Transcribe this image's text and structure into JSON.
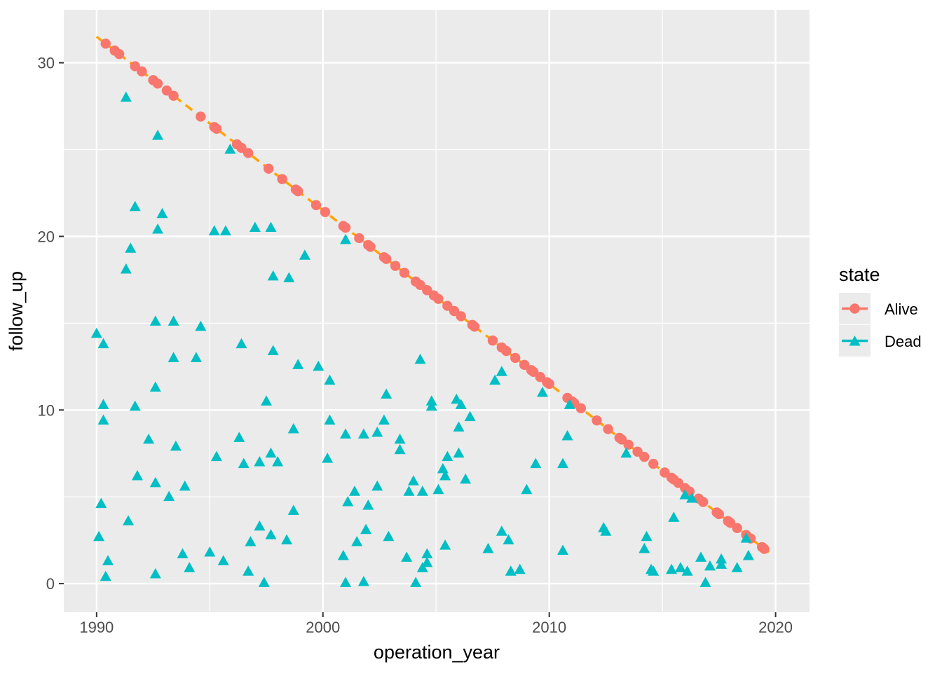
{
  "figure": {
    "background": "#FFFFFF",
    "panel_background": "#EBEBEB",
    "grid_color": "#FFFFFF",
    "tick_mark_color": "#333333",
    "tick_label_color": "#4D4D4D"
  },
  "legend": {
    "title": "state",
    "key_fill": "#EBEBEB",
    "entries": [
      {
        "label": "Alive",
        "color": "#F8766D",
        "marker": "circle"
      },
      {
        "label": "Dead",
        "color": "#00BFC4",
        "marker": "triangle"
      }
    ]
  },
  "chart_data": {
    "type": "scatter",
    "title": "",
    "xlabel": "operation_year",
    "ylabel": "follow_up",
    "x_ticks": [
      1990,
      2000,
      2010,
      2020
    ],
    "x_minor_ticks": [
      1995,
      2005,
      2015
    ],
    "y_ticks": [
      0,
      10,
      20,
      30
    ],
    "y_minor_ticks": [
      5,
      15,
      25
    ],
    "xlim": [
      1988.55,
      2021.5
    ],
    "ylim": [
      -1.65,
      33.05
    ],
    "grid": true,
    "legend_position": "right",
    "trend_line": {
      "color": "#FFA500",
      "style": "dashed",
      "x1": 1990.0,
      "y1": 31.5,
      "x2": 2019.7,
      "y2": 1.8
    },
    "series": [
      {
        "name": "Alive",
        "marker": "circle",
        "color": "#F8766D",
        "points": [
          [
            1990.4,
            31.1
          ],
          [
            1990.8,
            30.7
          ],
          [
            1991.0,
            30.5
          ],
          [
            1991.7,
            29.8
          ],
          [
            1992.0,
            29.5
          ],
          [
            1992.5,
            29.0
          ],
          [
            1992.7,
            28.8
          ],
          [
            1993.1,
            28.4
          ],
          [
            1993.4,
            28.1
          ],
          [
            1994.6,
            26.9
          ],
          [
            1995.2,
            26.3
          ],
          [
            1995.3,
            26.2
          ],
          [
            1996.2,
            25.3
          ],
          [
            1996.4,
            25.1
          ],
          [
            1996.7,
            24.8
          ],
          [
            1997.6,
            23.9
          ],
          [
            1998.2,
            23.3
          ],
          [
            1998.8,
            22.7
          ],
          [
            1998.9,
            22.6
          ],
          [
            1999.7,
            21.8
          ],
          [
            2000.1,
            21.4
          ],
          [
            2000.9,
            20.6
          ],
          [
            2001.0,
            20.5
          ],
          [
            2001.6,
            19.9
          ],
          [
            2002.0,
            19.5
          ],
          [
            2002.1,
            19.4
          ],
          [
            2002.7,
            18.8
          ],
          [
            2002.8,
            18.7
          ],
          [
            2003.2,
            18.3
          ],
          [
            2003.6,
            17.9
          ],
          [
            2004.1,
            17.4
          ],
          [
            2004.3,
            17.2
          ],
          [
            2004.6,
            16.9
          ],
          [
            2004.9,
            16.6
          ],
          [
            2005.1,
            16.4
          ],
          [
            2005.5,
            16.0
          ],
          [
            2005.8,
            15.7
          ],
          [
            2006.1,
            15.4
          ],
          [
            2006.6,
            14.9
          ],
          [
            2006.7,
            14.8
          ],
          [
            2007.5,
            14.0
          ],
          [
            2007.9,
            13.6
          ],
          [
            2008.1,
            13.4
          ],
          [
            2008.5,
            13.0
          ],
          [
            2008.9,
            12.6
          ],
          [
            2009.2,
            12.3
          ],
          [
            2009.3,
            12.2
          ],
          [
            2009.6,
            11.9
          ],
          [
            2009.9,
            11.6
          ],
          [
            2010.0,
            11.5
          ],
          [
            2010.8,
            10.7
          ],
          [
            2011.0,
            10.5
          ],
          [
            2011.1,
            10.4
          ],
          [
            2011.4,
            10.1
          ],
          [
            2012.1,
            9.4
          ],
          [
            2012.6,
            8.9
          ],
          [
            2013.1,
            8.4
          ],
          [
            2013.2,
            8.3
          ],
          [
            2013.5,
            8.0
          ],
          [
            2013.9,
            7.6
          ],
          [
            2014.2,
            7.3
          ],
          [
            2014.6,
            6.9
          ],
          [
            2015.1,
            6.4
          ],
          [
            2015.4,
            6.1
          ],
          [
            2015.5,
            6.0
          ],
          [
            2015.7,
            5.8
          ],
          [
            2016.0,
            5.5
          ],
          [
            2016.2,
            5.3
          ],
          [
            2016.6,
            4.9
          ],
          [
            2016.8,
            4.7
          ],
          [
            2017.4,
            4.1
          ],
          [
            2017.5,
            4.0
          ],
          [
            2017.9,
            3.6
          ],
          [
            2018.0,
            3.5
          ],
          [
            2018.3,
            3.2
          ],
          [
            2018.7,
            2.8
          ],
          [
            2018.9,
            2.6
          ],
          [
            2019.4,
            2.1
          ],
          [
            2019.5,
            2.0
          ]
        ]
      },
      {
        "name": "Dead",
        "marker": "triangle",
        "color": "#00BFC4",
        "points": [
          [
            1991.3,
            28.0
          ],
          [
            1992.7,
            25.8
          ],
          [
            1995.9,
            25.0
          ],
          [
            1991.7,
            21.7
          ],
          [
            1992.9,
            21.3
          ],
          [
            1992.7,
            20.4
          ],
          [
            1995.2,
            20.3
          ],
          [
            1995.7,
            20.3
          ],
          [
            1997.0,
            20.5
          ],
          [
            1997.7,
            20.5
          ],
          [
            2001.0,
            19.8
          ],
          [
            1991.5,
            19.3
          ],
          [
            1999.2,
            18.9
          ],
          [
            1991.3,
            18.1
          ],
          [
            1997.8,
            17.7
          ],
          [
            1998.5,
            17.6
          ],
          [
            1992.6,
            15.1
          ],
          [
            1993.4,
            15.1
          ],
          [
            1994.6,
            14.8
          ],
          [
            1990.0,
            14.4
          ],
          [
            1990.3,
            13.8
          ],
          [
            1996.4,
            13.8
          ],
          [
            1993.4,
            13.0
          ],
          [
            1994.4,
            13.0
          ],
          [
            1997.8,
            13.4
          ],
          [
            1998.9,
            12.6
          ],
          [
            1999.8,
            12.5
          ],
          [
            2004.3,
            12.9
          ],
          [
            2007.9,
            12.2
          ],
          [
            2007.6,
            11.7
          ],
          [
            2000.3,
            11.7
          ],
          [
            1992.6,
            11.3
          ],
          [
            2002.8,
            10.9
          ],
          [
            2009.7,
            11.0
          ],
          [
            2010.9,
            10.3
          ],
          [
            2004.8,
            10.5
          ],
          [
            2004.8,
            10.2
          ],
          [
            2005.9,
            10.6
          ],
          [
            2006.1,
            10.3
          ],
          [
            1997.5,
            10.5
          ],
          [
            1990.3,
            10.3
          ],
          [
            1991.7,
            10.2
          ],
          [
            1990.3,
            9.4
          ],
          [
            2000.3,
            9.4
          ],
          [
            2002.7,
            9.4
          ],
          [
            2006.5,
            9.6
          ],
          [
            2006.0,
            9.0
          ],
          [
            1998.7,
            8.9
          ],
          [
            2001.0,
            8.6
          ],
          [
            2001.8,
            8.6
          ],
          [
            2002.4,
            8.7
          ],
          [
            1992.3,
            8.3
          ],
          [
            2003.4,
            8.3
          ],
          [
            1996.3,
            8.4
          ],
          [
            2010.8,
            8.5
          ],
          [
            1993.5,
            7.9
          ],
          [
            2003.4,
            7.7
          ],
          [
            1997.7,
            7.5
          ],
          [
            2006.0,
            7.5
          ],
          [
            2013.4,
            7.5
          ],
          [
            1995.3,
            7.3
          ],
          [
            2005.5,
            7.3
          ],
          [
            2000.2,
            7.2
          ],
          [
            1996.5,
            6.9
          ],
          [
            1997.2,
            7.0
          ],
          [
            1998.0,
            7.0
          ],
          [
            2009.4,
            6.9
          ],
          [
            2010.6,
            6.9
          ],
          [
            2005.3,
            6.6
          ],
          [
            1991.8,
            6.2
          ],
          [
            2005.4,
            6.2
          ],
          [
            2006.3,
            6.0
          ],
          [
            2004.0,
            5.9
          ],
          [
            1992.6,
            5.8
          ],
          [
            1993.9,
            5.6
          ],
          [
            2002.4,
            5.6
          ],
          [
            2005.1,
            5.4
          ],
          [
            2009.0,
            5.4
          ],
          [
            2001.4,
            5.3
          ],
          [
            2003.8,
            5.3
          ],
          [
            2004.4,
            5.3
          ],
          [
            2016.0,
            5.1
          ],
          [
            1993.2,
            5.0
          ],
          [
            2016.3,
            4.9
          ],
          [
            2001.1,
            4.7
          ],
          [
            1990.2,
            4.6
          ],
          [
            2002.0,
            4.5
          ],
          [
            1998.7,
            4.2
          ],
          [
            2015.5,
            3.8
          ],
          [
            1991.4,
            3.6
          ],
          [
            1997.2,
            3.3
          ],
          [
            2012.4,
            3.2
          ],
          [
            2001.9,
            3.1
          ],
          [
            2012.5,
            3.0
          ],
          [
            2007.9,
            3.0
          ],
          [
            1997.7,
            2.8
          ],
          [
            2002.9,
            2.7
          ],
          [
            2014.3,
            2.7
          ],
          [
            1990.1,
            2.7
          ],
          [
            2018.7,
            2.6
          ],
          [
            1998.4,
            2.5
          ],
          [
            2008.2,
            2.5
          ],
          [
            1996.8,
            2.4
          ],
          [
            2001.5,
            2.4
          ],
          [
            2005.4,
            2.2
          ],
          [
            2007.3,
            2.0
          ],
          [
            2014.2,
            2.0
          ],
          [
            2010.6,
            1.9
          ],
          [
            1995.0,
            1.8
          ],
          [
            1993.8,
            1.7
          ],
          [
            2004.6,
            1.7
          ],
          [
            2000.9,
            1.6
          ],
          [
            2018.8,
            1.6
          ],
          [
            2003.7,
            1.5
          ],
          [
            2016.7,
            1.5
          ],
          [
            2017.6,
            1.4
          ],
          [
            1990.5,
            1.3
          ],
          [
            1995.6,
            1.3
          ],
          [
            2004.6,
            1.2
          ],
          [
            2017.6,
            1.1
          ],
          [
            2017.1,
            1.0
          ],
          [
            1994.1,
            0.9
          ],
          [
            2004.4,
            0.9
          ],
          [
            2018.3,
            0.9
          ],
          [
            2015.8,
            0.9
          ],
          [
            2008.7,
            0.8
          ],
          [
            2014.5,
            0.8
          ],
          [
            2015.4,
            0.8
          ],
          [
            2008.3,
            0.7
          ],
          [
            2014.6,
            0.7
          ],
          [
            2016.1,
            0.7
          ],
          [
            1996.7,
            0.7
          ],
          [
            1992.6,
            0.55
          ],
          [
            1990.4,
            0.4
          ],
          [
            2001.8,
            0.1
          ],
          [
            1997.4,
            0.05
          ],
          [
            2001.0,
            0.05
          ],
          [
            2004.1,
            0.05
          ],
          [
            2016.9,
            0.05
          ]
        ]
      }
    ]
  }
}
